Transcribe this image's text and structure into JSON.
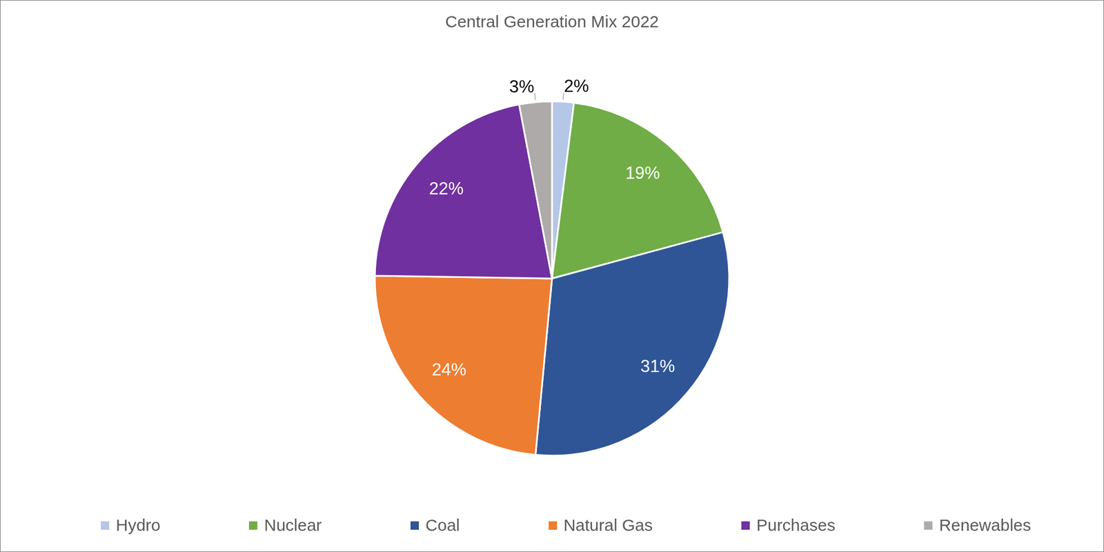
{
  "chart_data": {
    "type": "pie",
    "title": "Central Generation Mix 2022",
    "categories": [
      "Hydro",
      "Nuclear",
      "Coal",
      "Natural Gas",
      "Purchases",
      "Renewables"
    ],
    "values": [
      2,
      19,
      31,
      24,
      22,
      3
    ],
    "value_labels": [
      "2%",
      "19%",
      "31%",
      "24%",
      "22%",
      "3%"
    ],
    "colors": [
      "#b4c7e7",
      "#70ad47",
      "#2f5597",
      "#ed7d31",
      "#7030a0",
      "#aeaaaa"
    ],
    "data_labels": true,
    "legend": "bottom"
  }
}
